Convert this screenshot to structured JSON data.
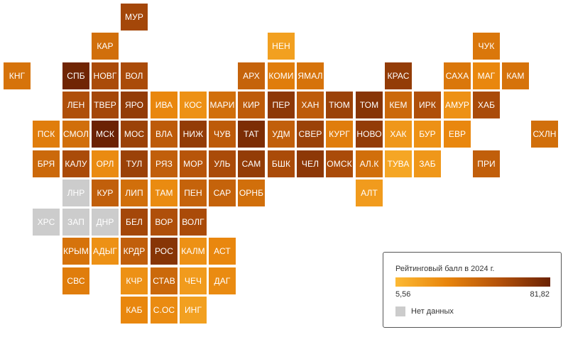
{
  "legend": {
    "title": "Рейтинговый балл в 2024 г.",
    "min": "5,56",
    "max": "81,82",
    "no_data": "Нет данных"
  },
  "colors": {
    "scale": [
      "#fcb934",
      "#e8850c",
      "#b4520a",
      "#6b2204"
    ],
    "no_data": "#cccccc"
  },
  "chart_data": {
    "type": "heatmap",
    "value_range": [
      5.56,
      81.82
    ],
    "regions": [
      {
        "name": "МУР",
        "col": 4,
        "row": 0,
        "value": 62
      },
      {
        "name": "КАР",
        "col": 3,
        "row": 1,
        "value": 42
      },
      {
        "name": "НЕН",
        "col": 9,
        "row": 1,
        "value": 18
      },
      {
        "name": "ЧУК",
        "col": 16,
        "row": 1,
        "value": 38
      },
      {
        "name": "КНГ",
        "col": 0,
        "row": 2,
        "value": 40
      },
      {
        "name": "СПБ",
        "col": 2,
        "row": 2,
        "value": 80
      },
      {
        "name": "НОВГ",
        "col": 3,
        "row": 2,
        "value": 60
      },
      {
        "name": "ВОЛ",
        "col": 4,
        "row": 2,
        "value": 60
      },
      {
        "name": "АРХ",
        "col": 8,
        "row": 2,
        "value": 48
      },
      {
        "name": "КОМИ",
        "col": 9,
        "row": 2,
        "value": 35
      },
      {
        "name": "ЯМАЛ",
        "col": 10,
        "row": 2,
        "value": 40
      },
      {
        "name": "КРАС",
        "col": 13,
        "row": 2,
        "value": 68
      },
      {
        "name": "САХА",
        "col": 15,
        "row": 2,
        "value": 38
      },
      {
        "name": "МАГ",
        "col": 16,
        "row": 2,
        "value": 30
      },
      {
        "name": "КАМ",
        "col": 17,
        "row": 2,
        "value": 40
      },
      {
        "name": "ЛЕН",
        "col": 2,
        "row": 3,
        "value": 58
      },
      {
        "name": "ТВЕР",
        "col": 3,
        "row": 3,
        "value": 62
      },
      {
        "name": "ЯРО",
        "col": 4,
        "row": 3,
        "value": 68
      },
      {
        "name": "ИВА",
        "col": 5,
        "row": 3,
        "value": 30
      },
      {
        "name": "КОС",
        "col": 6,
        "row": 3,
        "value": 25
      },
      {
        "name": "МАРИ",
        "col": 7,
        "row": 3,
        "value": 42
      },
      {
        "name": "КИР",
        "col": 8,
        "row": 3,
        "value": 52
      },
      {
        "name": "ПЕР",
        "col": 9,
        "row": 3,
        "value": 70
      },
      {
        "name": "ХАН",
        "col": 10,
        "row": 3,
        "value": 52
      },
      {
        "name": "ТЮМ",
        "col": 11,
        "row": 3,
        "value": 65
      },
      {
        "name": "ТОМ",
        "col": 12,
        "row": 3,
        "value": 72
      },
      {
        "name": "КЕМ",
        "col": 13,
        "row": 3,
        "value": 45
      },
      {
        "name": "ИРК",
        "col": 14,
        "row": 3,
        "value": 58
      },
      {
        "name": "АМУР",
        "col": 15,
        "row": 3,
        "value": 25
      },
      {
        "name": "ХАБ",
        "col": 16,
        "row": 3,
        "value": 60
      },
      {
        "name": "ПСК",
        "col": 1,
        "row": 4,
        "value": 35
      },
      {
        "name": "СМОЛ",
        "col": 2,
        "row": 4,
        "value": 42
      },
      {
        "name": "МСК",
        "col": 3,
        "row": 4,
        "value": 81.82
      },
      {
        "name": "МОС",
        "col": 4,
        "row": 4,
        "value": 65
      },
      {
        "name": "ВЛА",
        "col": 5,
        "row": 4,
        "value": 52
      },
      {
        "name": "НИЖ",
        "col": 6,
        "row": 4,
        "value": 68
      },
      {
        "name": "ЧУВ",
        "col": 7,
        "row": 4,
        "value": 52
      },
      {
        "name": "ТАТ",
        "col": 8,
        "row": 4,
        "value": 76
      },
      {
        "name": "УДМ",
        "col": 9,
        "row": 4,
        "value": 50
      },
      {
        "name": "СВЕР",
        "col": 10,
        "row": 4,
        "value": 65
      },
      {
        "name": "КУРГ",
        "col": 11,
        "row": 4,
        "value": 35
      },
      {
        "name": "НОВО",
        "col": 12,
        "row": 4,
        "value": 68
      },
      {
        "name": "ХАК",
        "col": 13,
        "row": 4,
        "value": 22
      },
      {
        "name": "БУР",
        "col": 14,
        "row": 4,
        "value": 25
      },
      {
        "name": "ЕВР",
        "col": 15,
        "row": 4,
        "value": 30
      },
      {
        "name": "СХЛН",
        "col": 18,
        "row": 4,
        "value": 42
      },
      {
        "name": "БРЯ",
        "col": 1,
        "row": 5,
        "value": 45
      },
      {
        "name": "КАЛУ",
        "col": 2,
        "row": 5,
        "value": 60
      },
      {
        "name": "ОРЛ",
        "col": 3,
        "row": 5,
        "value": 28
      },
      {
        "name": "ТУЛ",
        "col": 4,
        "row": 5,
        "value": 65
      },
      {
        "name": "РЯЗ",
        "col": 5,
        "row": 5,
        "value": 50
      },
      {
        "name": "МОР",
        "col": 6,
        "row": 5,
        "value": 55
      },
      {
        "name": "УЛЬ",
        "col": 7,
        "row": 5,
        "value": 60
      },
      {
        "name": "САМ",
        "col": 8,
        "row": 5,
        "value": 68
      },
      {
        "name": "БШК",
        "col": 9,
        "row": 5,
        "value": 60
      },
      {
        "name": "ЧЕЛ",
        "col": 10,
        "row": 5,
        "value": 70
      },
      {
        "name": "ОМСК",
        "col": 11,
        "row": 5,
        "value": 60
      },
      {
        "name": "АЛ.К",
        "col": 12,
        "row": 5,
        "value": 42
      },
      {
        "name": "ТУВА",
        "col": 13,
        "row": 5,
        "value": 15
      },
      {
        "name": "ЗАБ",
        "col": 14,
        "row": 5,
        "value": 22
      },
      {
        "name": "ПРИ",
        "col": 16,
        "row": 5,
        "value": 50
      },
      {
        "name": "ЛНР",
        "col": 2,
        "row": 6,
        "value": null
      },
      {
        "name": "КУР",
        "col": 3,
        "row": 6,
        "value": 50
      },
      {
        "name": "ЛИП",
        "col": 4,
        "row": 6,
        "value": 42
      },
      {
        "name": "ТАМ",
        "col": 5,
        "row": 6,
        "value": 28
      },
      {
        "name": "ПЕН",
        "col": 6,
        "row": 6,
        "value": 48
      },
      {
        "name": "САР",
        "col": 7,
        "row": 6,
        "value": 48
      },
      {
        "name": "ОРНБ",
        "col": 8,
        "row": 6,
        "value": 42
      },
      {
        "name": "АЛТ",
        "col": 12,
        "row": 6,
        "value": 20
      },
      {
        "name": "ХРС",
        "col": 1,
        "row": 7,
        "value": null
      },
      {
        "name": "ЗАП",
        "col": 2,
        "row": 7,
        "value": null
      },
      {
        "name": "ДНР",
        "col": 3,
        "row": 7,
        "value": null
      },
      {
        "name": "БЕЛ",
        "col": 4,
        "row": 7,
        "value": 62
      },
      {
        "name": "ВОР",
        "col": 5,
        "row": 7,
        "value": 58
      },
      {
        "name": "ВОЛГ",
        "col": 6,
        "row": 7,
        "value": 60
      },
      {
        "name": "КРЫМ",
        "col": 2,
        "row": 8,
        "value": 40
      },
      {
        "name": "АДЫГ",
        "col": 3,
        "row": 8,
        "value": 25
      },
      {
        "name": "КРДР",
        "col": 4,
        "row": 8,
        "value": 50
      },
      {
        "name": "РОС",
        "col": 5,
        "row": 8,
        "value": 72
      },
      {
        "name": "КАЛМ",
        "col": 6,
        "row": 8,
        "value": 25
      },
      {
        "name": "АСТ",
        "col": 7,
        "row": 8,
        "value": 30
      },
      {
        "name": "СВС",
        "col": 2,
        "row": 9,
        "value": 35
      },
      {
        "name": "КЧР",
        "col": 4,
        "row": 9,
        "value": 25
      },
      {
        "name": "СТАВ",
        "col": 5,
        "row": 9,
        "value": 45
      },
      {
        "name": "ЧЕЧ",
        "col": 6,
        "row": 9,
        "value": 20
      },
      {
        "name": "ДАГ",
        "col": 7,
        "row": 9,
        "value": 28
      },
      {
        "name": "КАБ",
        "col": 4,
        "row": 10,
        "value": 30
      },
      {
        "name": "С.ОС",
        "col": 5,
        "row": 10,
        "value": 28
      },
      {
        "name": "ИНГ",
        "col": 6,
        "row": 10,
        "value": 18
      }
    ]
  }
}
